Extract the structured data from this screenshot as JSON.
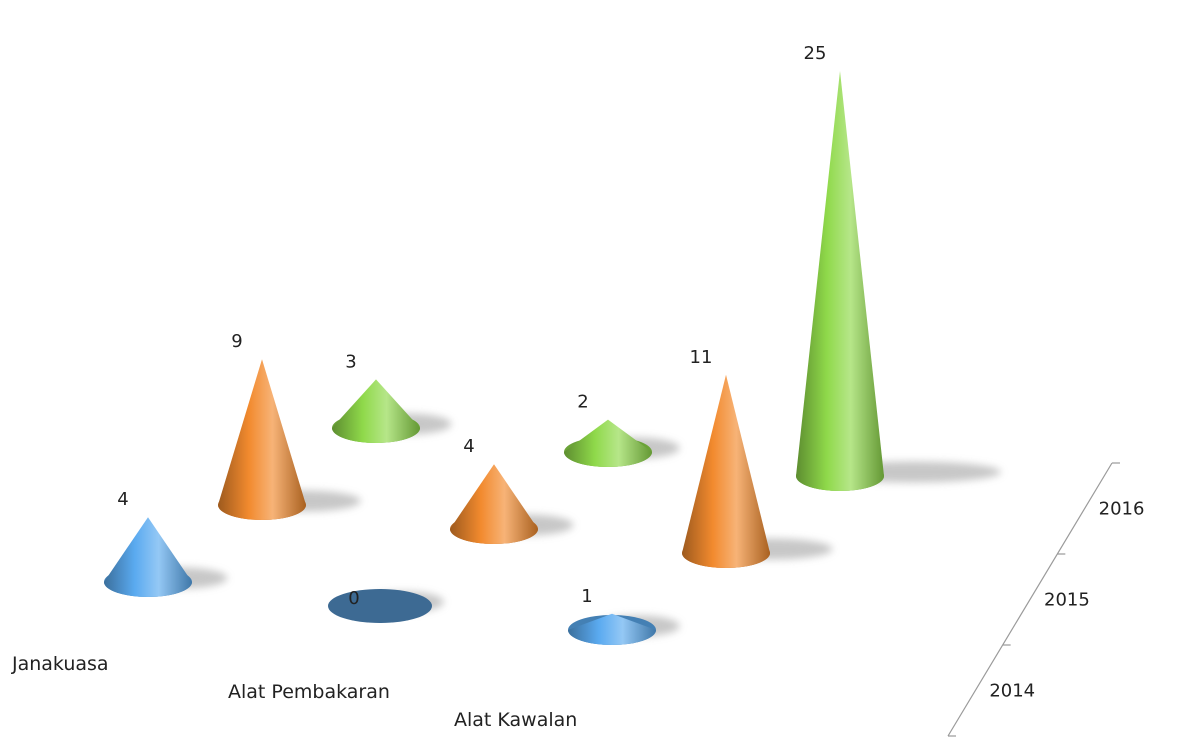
{
  "chart_data": {
    "type": "bar",
    "subtype": "3d-cone",
    "title": "",
    "categories": [
      "Janakuasa",
      "Alat Pembakaran",
      "Alat Kawalan"
    ],
    "series": [
      {
        "name": "2014",
        "values": [
          4,
          0,
          1
        ],
        "color": "#5aaaf0"
      },
      {
        "name": "2015",
        "values": [
          9,
          4,
          11
        ],
        "color": "#f28a2e"
      },
      {
        "name": "2016",
        "values": [
          3,
          2,
          25
        ],
        "color": "#8fd94a"
      }
    ],
    "zero_color": "#3d6a93",
    "depth_axis_ticks": [
      "2014",
      "2015",
      "2016"
    ],
    "data_labels": true,
    "grid": false,
    "legend": "none"
  }
}
